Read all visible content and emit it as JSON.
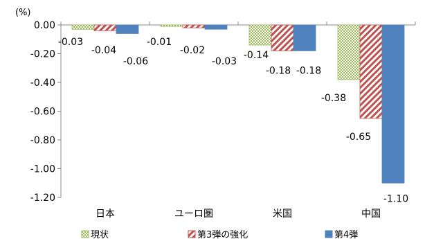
{
  "chart_data": {
    "type": "bar",
    "title": "",
    "xlabel": "",
    "ylabel": "",
    "unit": "(%)",
    "categories": [
      "日本",
      "ユーロ圏",
      "米国",
      "中国"
    ],
    "ylim": [
      -1.2,
      0.0
    ],
    "yticks": [
      "0.00",
      "-0.20",
      "-0.40",
      "-0.60",
      "-0.80",
      "-1.00",
      "-1.20"
    ],
    "ytick_values": [
      0.0,
      -0.2,
      -0.4,
      -0.6,
      -0.8,
      -1.0,
      -1.2
    ],
    "grid": false,
    "legend_position": "bottom",
    "series": [
      {
        "name": "現状",
        "values": [
          -0.03,
          -0.01,
          -0.14,
          -0.38
        ],
        "labels": [
          "-0.03",
          "-0.01",
          "-0.14",
          "-0.38"
        ],
        "color": "#9bbb59",
        "pattern": "checker"
      },
      {
        "name": "第3弾の強化",
        "values": [
          -0.04,
          -0.02,
          -0.18,
          -0.65
        ],
        "labels": [
          "-0.04",
          "-0.02",
          "-0.18",
          "-0.65"
        ],
        "color": "#c0504d",
        "pattern": "diagonal"
      },
      {
        "name": "第4弾",
        "values": [
          -0.06,
          -0.03,
          -0.18,
          -1.1
        ],
        "labels": [
          "-0.06",
          "-0.03",
          "-0.18",
          "-1.10"
        ],
        "color": "#4f81bd",
        "pattern": "solid"
      }
    ]
  }
}
